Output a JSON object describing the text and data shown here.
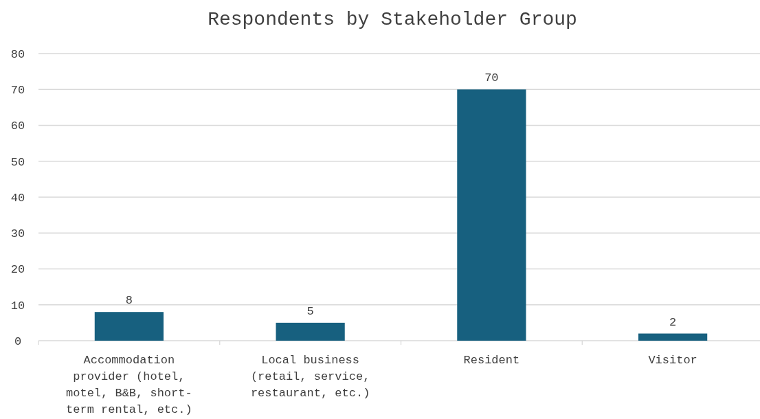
{
  "chart_data": {
    "type": "bar",
    "title": "Respondents by Stakeholder Group",
    "categories": [
      "Accommodation provider (hotel, motel, B&B, short-term rental, etc.)",
      "Local business (retail, service, restaurant, etc.)",
      "Resident",
      "Visitor"
    ],
    "values": [
      8,
      5,
      70,
      2
    ],
    "color": "#17607f",
    "data_labels": true,
    "ylim": [
      0,
      80
    ],
    "yticks": [
      0,
      10,
      20,
      30,
      40,
      50,
      60,
      70,
      80
    ],
    "grid": "y"
  }
}
